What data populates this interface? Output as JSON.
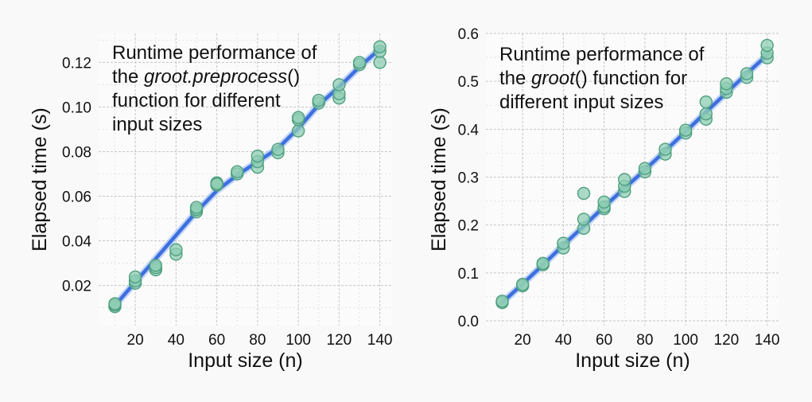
{
  "chart_data": [
    {
      "type": "scatter",
      "title": "",
      "annotation_lines": [
        [
          {
            "text": "Runtime performance of",
            "italic": false
          }
        ],
        [
          {
            "text": "the ",
            "italic": false
          },
          {
            "text": "groot.preprocess",
            "italic": true
          },
          {
            "text": "()",
            "italic": false
          }
        ],
        [
          {
            "text": "function for different",
            "italic": false
          }
        ],
        [
          {
            "text": "input sizes",
            "italic": false
          }
        ]
      ],
      "xlabel": "Input size (n)",
      "ylabel": "Elapsed time (s)",
      "xlim": [
        2,
        146
      ],
      "ylim": [
        0.002,
        0.133
      ],
      "xticks": [
        20,
        40,
        60,
        80,
        100,
        120,
        140
      ],
      "yticks": [
        0.02,
        0.04,
        0.06,
        0.08,
        0.1,
        0.12
      ],
      "ytick_labels": [
        "0.02",
        "0.04",
        "0.06",
        "0.08",
        "0.10",
        "0.12"
      ],
      "grid": true,
      "colors": {
        "points_fill": "#8fcdb4",
        "points_stroke": "#4d9f7e",
        "fit_line": "#3e6fe0",
        "fit_halo": "#a9c4f2"
      },
      "fit_line": {
        "x": [
          10,
          20,
          30,
          40,
          50,
          60,
          70,
          80,
          90,
          100,
          110,
          120,
          130,
          140
        ],
        "y": [
          0.011,
          0.0215,
          0.032,
          0.0425,
          0.053,
          0.0625,
          0.0695,
          0.0755,
          0.0815,
          0.0905,
          0.101,
          0.109,
          0.118,
          0.126
        ]
      },
      "series": [
        {
          "x": [
            10,
            10,
            10,
            20,
            20,
            20,
            30,
            30,
            30,
            40,
            40,
            50,
            50,
            50,
            60,
            60,
            60,
            70,
            70,
            80,
            80,
            80,
            90,
            90,
            100,
            100,
            100,
            110,
            110,
            120,
            120,
            120,
            130,
            130,
            140,
            140,
            140
          ],
          "y": [
            0.0105,
            0.0112,
            0.0118,
            0.021,
            0.022,
            0.0238,
            0.027,
            0.028,
            0.029,
            0.034,
            0.036,
            0.053,
            0.054,
            0.055,
            0.065,
            0.066,
            0.0655,
            0.07,
            0.071,
            0.073,
            0.0755,
            0.078,
            0.0795,
            0.081,
            0.0893,
            0.0943,
            0.0953,
            0.1018,
            0.103,
            0.104,
            0.106,
            0.11,
            0.119,
            0.12,
            0.12,
            0.125,
            0.127
          ]
        }
      ]
    },
    {
      "type": "scatter",
      "title": "",
      "annotation_lines": [
        [
          {
            "text": "Runtime performance of",
            "italic": false
          }
        ],
        [
          {
            "text": "the ",
            "italic": false
          },
          {
            "text": "groot",
            "italic": true
          },
          {
            "text": "() function for",
            "italic": false
          }
        ],
        [
          {
            "text": "different input sizes",
            "italic": false
          }
        ]
      ],
      "xlabel": "Input size (n)",
      "ylabel": "Elapsed time (s)",
      "xlim": [
        2,
        146
      ],
      "ylim": [
        -0.01,
        0.6
      ],
      "xticks": [
        20,
        40,
        60,
        80,
        100,
        120,
        140
      ],
      "yticks": [
        0.0,
        0.1,
        0.2,
        0.3,
        0.4,
        0.5,
        0.6
      ],
      "ytick_labels": [
        "0.0",
        "0.1",
        "0.2",
        "0.3",
        "0.4",
        "0.5",
        "0.6"
      ],
      "grid": true,
      "colors": {
        "points_fill": "#8fcdb4",
        "points_stroke": "#4d9f7e",
        "fit_line": "#3e6fe0",
        "fit_halo": "#a9c4f2"
      },
      "fit_line": {
        "x": [
          10,
          20,
          30,
          40,
          50,
          60,
          70,
          80,
          90,
          100,
          110,
          120,
          130,
          140
        ],
        "y": [
          0.038,
          0.077,
          0.117,
          0.158,
          0.198,
          0.238,
          0.277,
          0.315,
          0.355,
          0.395,
          0.436,
          0.476,
          0.516,
          0.555
        ]
      },
      "series": [
        {
          "x": [
            10,
            10,
            20,
            20,
            30,
            30,
            40,
            40,
            50,
            50,
            50,
            60,
            60,
            60,
            70,
            70,
            70,
            80,
            80,
            90,
            90,
            100,
            100,
            110,
            110,
            110,
            120,
            120,
            120,
            130,
            130,
            140,
            140,
            140
          ],
          "y": [
            0.038,
            0.041,
            0.073,
            0.076,
            0.117,
            0.12,
            0.152,
            0.162,
            0.193,
            0.212,
            0.266,
            0.234,
            0.238,
            0.248,
            0.27,
            0.281,
            0.295,
            0.311,
            0.318,
            0.348,
            0.358,
            0.392,
            0.398,
            0.421,
            0.432,
            0.457,
            0.477,
            0.485,
            0.495,
            0.508,
            0.516,
            0.549,
            0.559,
            0.575
          ]
        }
      ]
    }
  ]
}
